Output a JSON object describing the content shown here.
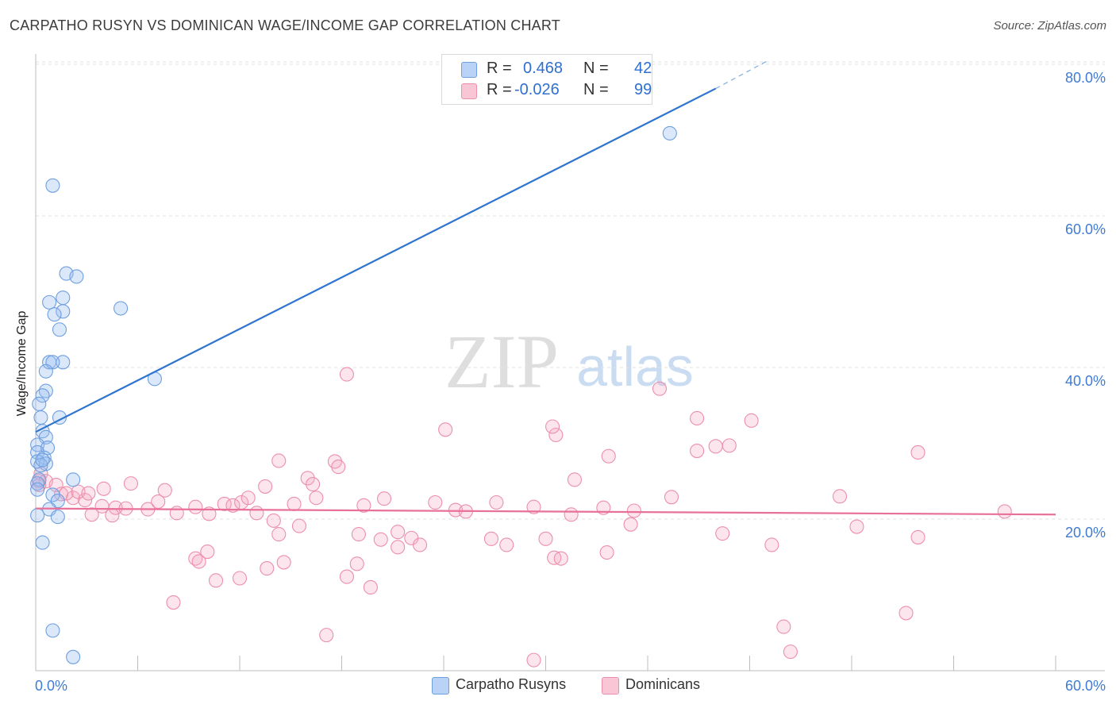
{
  "title": "CARPATHO RUSYN VS DOMINICAN WAGE/INCOME GAP CORRELATION CHART",
  "source": "Source: ZipAtlas.com",
  "watermark": {
    "zip": "ZIP",
    "atlas": "atlas"
  },
  "legend": {
    "r_label": "R =",
    "n_label": "N =",
    "rows": [
      {
        "r": "0.468",
        "n": "42",
        "fill": "#b8d3f5",
        "stroke": "#6e9fe0"
      },
      {
        "r": "-0.026",
        "n": "99",
        "fill": "#f9c6d6",
        "stroke": "#ec8fab"
      }
    ]
  },
  "bottom_legend": [
    "Carpatho Rusyns",
    "Dominicans"
  ],
  "colors": {
    "blue_fill": "rgba(151,190,240,0.35)",
    "blue_stroke": "#6e9fe0",
    "blue_line": "#2f75cf",
    "pink_fill": "rgba(246,170,196,0.30)",
    "pink_stroke": "#ec8fab",
    "pink_line": "#e8719a",
    "tick_label": "#3f7bd4"
  },
  "chart_data": {
    "type": "scatter",
    "title": "CARPATHO RUSYN VS DOMINICAN WAGE/INCOME GAP CORRELATION CHART",
    "xlabel": "",
    "ylabel": "Wage/Income Gap",
    "xlim": [
      0,
      60
    ],
    "ylim": [
      0,
      82
    ],
    "x_tick_labels": [
      {
        "value": 0,
        "label": "0.0%"
      },
      {
        "value": 60,
        "label": "60.0%"
      }
    ],
    "y_tick_labels": [
      {
        "value": 20,
        "label": "20.0%"
      },
      {
        "value": 40,
        "label": "40.0%"
      },
      {
        "value": 60,
        "label": "60.0%"
      },
      {
        "value": 80,
        "label": "80.0%"
      }
    ],
    "grid": true,
    "series": [
      {
        "name": "Carpatho Rusyns",
        "trend": {
          "x0": 0,
          "y0": 31.5,
          "x1": 40,
          "y1": 76.8,
          "dash_x1": 43,
          "dash_y1": 80.4
        },
        "points": [
          [
            1.0,
            64.0
          ],
          [
            1.8,
            52.4
          ],
          [
            2.4,
            52.0
          ],
          [
            5.0,
            47.8
          ],
          [
            1.6,
            49.2
          ],
          [
            0.8,
            48.6
          ],
          [
            1.6,
            47.4
          ],
          [
            1.1,
            47.0
          ],
          [
            1.4,
            45.0
          ],
          [
            0.8,
            40.7
          ],
          [
            1.6,
            40.7
          ],
          [
            1.0,
            40.7
          ],
          [
            0.6,
            39.5
          ],
          [
            7.0,
            38.5
          ],
          [
            0.6,
            36.9
          ],
          [
            0.4,
            36.3
          ],
          [
            0.2,
            35.2
          ],
          [
            1.4,
            33.4
          ],
          [
            0.3,
            33.4
          ],
          [
            0.4,
            31.6
          ],
          [
            0.6,
            30.8
          ],
          [
            0.1,
            29.8
          ],
          [
            0.7,
            29.4
          ],
          [
            0.1,
            28.8
          ],
          [
            0.5,
            28.1
          ],
          [
            0.1,
            27.6
          ],
          [
            0.6,
            27.3
          ],
          [
            0.3,
            27.1
          ],
          [
            0.4,
            27.8
          ],
          [
            0.2,
            25.2
          ],
          [
            0.1,
            24.7
          ],
          [
            0.1,
            23.9
          ],
          [
            2.2,
            25.2
          ],
          [
            1.0,
            23.2
          ],
          [
            1.3,
            22.4
          ],
          [
            0.8,
            21.3
          ],
          [
            1.3,
            20.3
          ],
          [
            0.1,
            20.5
          ],
          [
            0.4,
            16.9
          ],
          [
            1.0,
            5.3
          ],
          [
            2.2,
            1.8
          ],
          [
            37.3,
            70.9
          ]
        ]
      },
      {
        "name": "Dominicans",
        "trend": {
          "x0": 0,
          "y0": 21.4,
          "x1": 60,
          "y1": 20.6
        },
        "points": [
          [
            0.3,
            26.0
          ],
          [
            0.6,
            25.0
          ],
          [
            1.2,
            24.5
          ],
          [
            1.5,
            23.3
          ],
          [
            2.2,
            22.8
          ],
          [
            2.9,
            22.5
          ],
          [
            3.9,
            21.7
          ],
          [
            4.7,
            21.5
          ],
          [
            1.8,
            23.4
          ],
          [
            2.5,
            23.6
          ],
          [
            3.1,
            23.4
          ],
          [
            4.0,
            24.0
          ],
          [
            5.6,
            24.7
          ],
          [
            7.6,
            23.8
          ],
          [
            0.2,
            25.0
          ],
          [
            0.2,
            24.5
          ],
          [
            3.3,
            20.6
          ],
          [
            4.5,
            20.5
          ],
          [
            5.3,
            21.4
          ],
          [
            6.6,
            21.3
          ],
          [
            7.2,
            22.3
          ],
          [
            8.3,
            20.8
          ],
          [
            9.4,
            21.6
          ],
          [
            10.2,
            20.7
          ],
          [
            11.1,
            22.0
          ],
          [
            11.6,
            21.8
          ],
          [
            12.1,
            22.2
          ],
          [
            12.5,
            22.8
          ],
          [
            13.0,
            20.8
          ],
          [
            13.5,
            24.3
          ],
          [
            14.3,
            27.7
          ],
          [
            14.0,
            19.8
          ],
          [
            14.3,
            18.0
          ],
          [
            15.2,
            22.0
          ],
          [
            15.5,
            19.1
          ],
          [
            16.0,
            25.4
          ],
          [
            16.5,
            22.8
          ],
          [
            16.3,
            24.6
          ],
          [
            17.6,
            27.6
          ],
          [
            17.8,
            26.9
          ],
          [
            18.3,
            39.1
          ],
          [
            19.3,
            21.8
          ],
          [
            20.5,
            22.7
          ],
          [
            21.3,
            16.3
          ],
          [
            21.3,
            18.3
          ],
          [
            22.1,
            17.5
          ],
          [
            20.3,
            17.3
          ],
          [
            22.6,
            16.6
          ],
          [
            23.5,
            22.2
          ],
          [
            24.7,
            21.2
          ],
          [
            24.1,
            31.8
          ],
          [
            25.3,
            21.0
          ],
          [
            26.8,
            17.4
          ],
          [
            27.1,
            22.2
          ],
          [
            27.7,
            16.6
          ],
          [
            29.3,
            21.6
          ],
          [
            30.0,
            17.4
          ],
          [
            30.5,
            14.9
          ],
          [
            31.5,
            20.6
          ],
          [
            30.9,
            14.8
          ],
          [
            30.6,
            31.1
          ],
          [
            30.4,
            32.2
          ],
          [
            31.7,
            25.2
          ],
          [
            33.4,
            21.5
          ],
          [
            33.6,
            15.6
          ],
          [
            33.7,
            28.3
          ],
          [
            35.0,
            19.3
          ],
          [
            35.2,
            21.1
          ],
          [
            36.7,
            37.2
          ],
          [
            37.4,
            22.9
          ],
          [
            38.9,
            33.3
          ],
          [
            38.9,
            29.0
          ],
          [
            40.0,
            29.6
          ],
          [
            40.8,
            29.7
          ],
          [
            40.4,
            18.1
          ],
          [
            42.1,
            33.0
          ],
          [
            43.3,
            16.6
          ],
          [
            44.0,
            5.8
          ],
          [
            44.4,
            2.5
          ],
          [
            47.3,
            23.0
          ],
          [
            48.3,
            19.0
          ],
          [
            51.2,
            7.6
          ],
          [
            51.9,
            28.8
          ],
          [
            51.9,
            17.6
          ],
          [
            57.0,
            21.0
          ],
          [
            8.1,
            9.0
          ],
          [
            9.4,
            14.8
          ],
          [
            9.6,
            14.4
          ],
          [
            10.1,
            15.7
          ],
          [
            10.6,
            11.9
          ],
          [
            12.0,
            12.2
          ],
          [
            13.6,
            13.5
          ],
          [
            14.6,
            14.3
          ],
          [
            17.1,
            4.7
          ],
          [
            18.3,
            12.4
          ],
          [
            18.9,
            14.1
          ],
          [
            19.7,
            11.0
          ],
          [
            29.3,
            1.4
          ],
          [
            19.0,
            18.0
          ]
        ]
      }
    ]
  }
}
